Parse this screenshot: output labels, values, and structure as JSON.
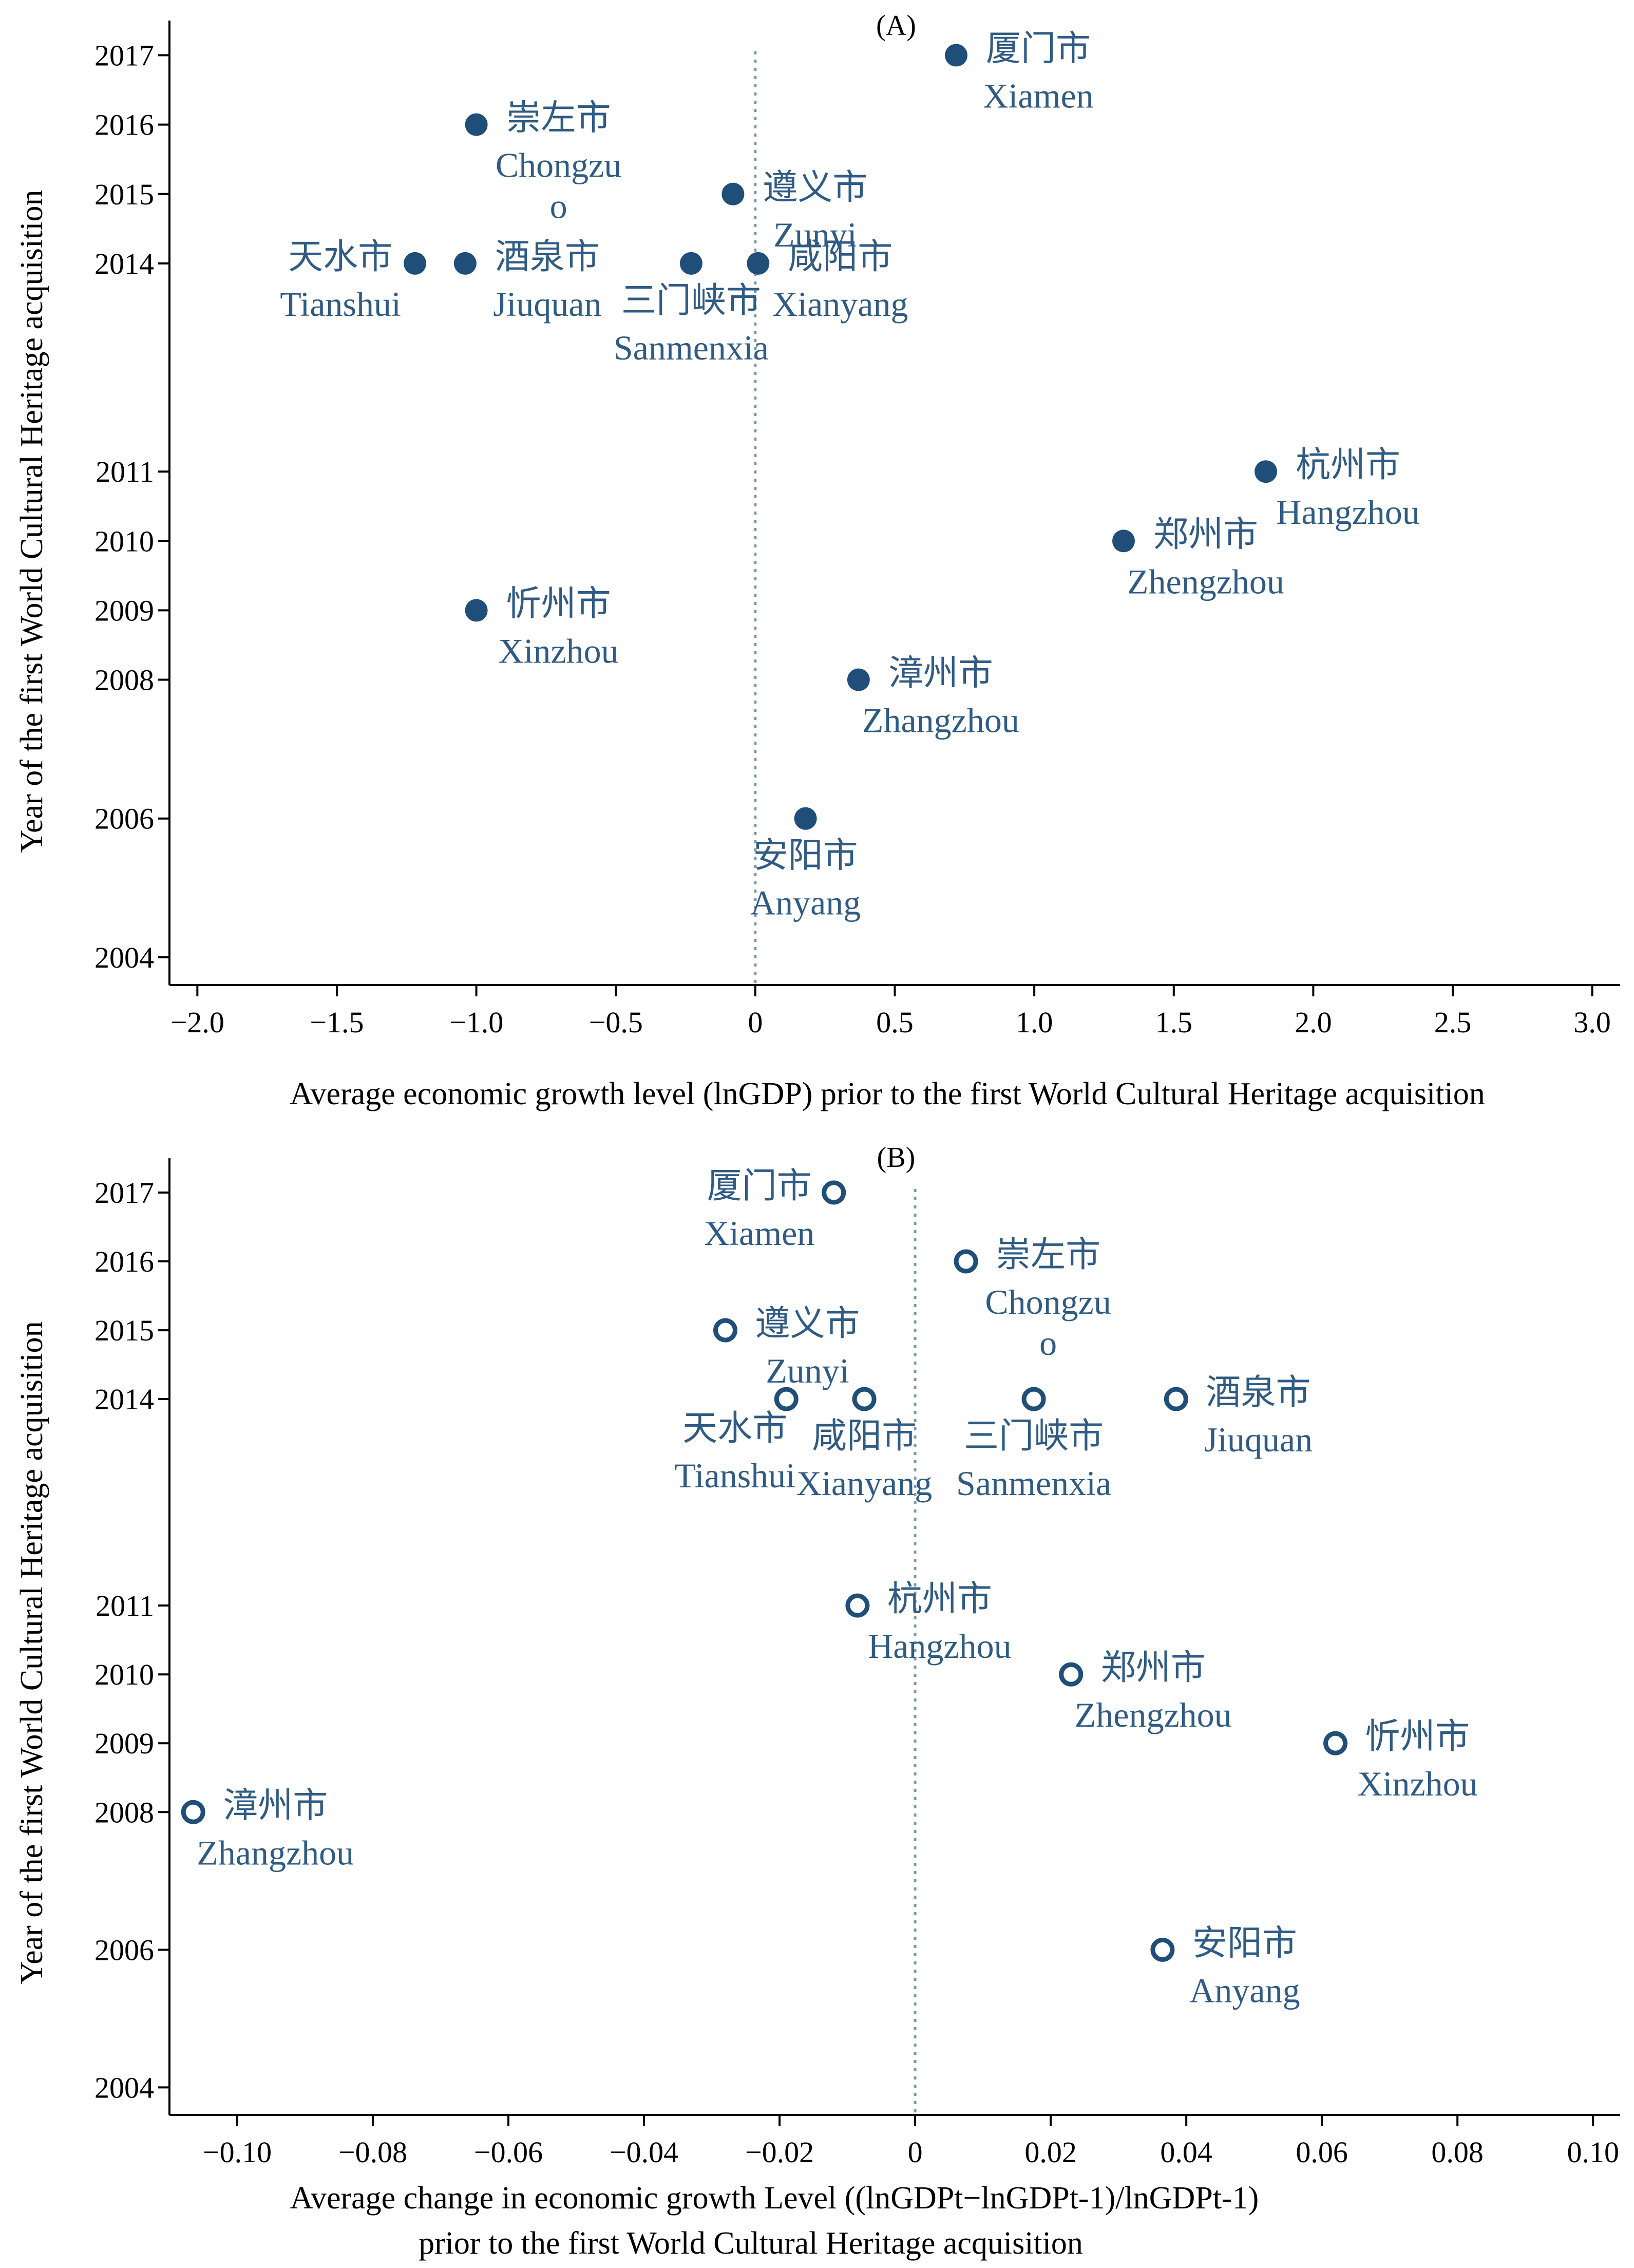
{
  "chart_data": [
    {
      "type": "scatter",
      "title": "(A)",
      "xlabel": "Average economic growth level (lnGDP) prior to  the first World Cultural Heritage acquisition",
      "ylabel": "Year of the first World Cultural Heritage acquisition",
      "xlim": [
        -2.1,
        3.1
      ],
      "ylim": [
        2003.6,
        2017.5
      ],
      "xticks": [
        -2.0,
        -1.5,
        -1.0,
        -0.5,
        0,
        0.5,
        1.0,
        1.5,
        2.0,
        2.5,
        3.0
      ],
      "xtick_labels": [
        "−2.0",
        "−1.5",
        "−1.0",
        "−0.5",
        "0",
        "0.5",
        "1.0",
        "1.5",
        "2.0",
        "2.5",
        "3.0"
      ],
      "yticks": [
        2004,
        2006,
        2008,
        2009,
        2010,
        2011,
        2014,
        2015,
        2016,
        2017
      ],
      "ytick_labels": [
        "2004",
        "2006",
        "2008",
        "2009",
        "2010",
        "2011",
        "2014",
        "2015",
        "2016",
        "2017"
      ],
      "reference_line_x": 0,
      "marker": "filled-circle",
      "color": "#1f4e79",
      "label_color": "#2f5b84",
      "points": [
        {
          "cn": "厦门市",
          "en": "Xiamen",
          "x": 0.72,
          "y": 2017,
          "label_pos": "right"
        },
        {
          "cn": "崇左市",
          "en": "Chongzu",
          "en2": "o",
          "x": -1.0,
          "y": 2016,
          "label_pos": "right"
        },
        {
          "cn": "遵义市",
          "en": "Zunyi",
          "x": -0.08,
          "y": 2015,
          "label_pos": "right"
        },
        {
          "cn": "天水市",
          "en": "Tianshui",
          "x": -1.22,
          "y": 2014,
          "label_pos": "left"
        },
        {
          "cn": "酒泉市",
          "en": "Jiuquan",
          "x": -1.04,
          "y": 2014,
          "label_pos": "right"
        },
        {
          "cn": "三门峡市",
          "en": "Sanmenxia",
          "x": -0.23,
          "y": 2014,
          "label_pos": "below"
        },
        {
          "cn": "咸阳市",
          "en": "Xianyang",
          "x": 0.01,
          "y": 2014,
          "label_pos": "right"
        },
        {
          "cn": "杭州市",
          "en": "Hangzhou",
          "x": 1.83,
          "y": 2011,
          "label_pos": "right"
        },
        {
          "cn": "郑州市",
          "en": "Zhengzhou",
          "x": 1.32,
          "y": 2010,
          "label_pos": "right"
        },
        {
          "cn": "忻州市",
          "en": "Xinzhou",
          "x": -1.0,
          "y": 2009,
          "label_pos": "right"
        },
        {
          "cn": "漳州市",
          "en": "Zhangzhou",
          "x": 0.37,
          "y": 2008,
          "label_pos": "right"
        },
        {
          "cn": "安阳市",
          "en": "Anyang",
          "x": 0.18,
          "y": 2006,
          "label_pos": "below"
        }
      ]
    },
    {
      "type": "scatter",
      "title": "(B)",
      "xlabel": "Average change in economic growth Level ((lnGDPt−lnGDPt-1)/lnGDPt-1)",
      "xlabel_line2": "prior to  the first World Cultural Heritage acquisition",
      "ylabel": "Year of the first World Cultural Heritage acquisition",
      "xlim": [
        -0.11,
        0.104
      ],
      "ylim": [
        2003.6,
        2017.5
      ],
      "xticks": [
        -0.1,
        -0.08,
        -0.06,
        -0.04,
        -0.02,
        0,
        0.02,
        0.04,
        0.06,
        0.08,
        0.1
      ],
      "xtick_labels": [
        "−0.10",
        "−0.08",
        "−0.06",
        "−0.04",
        "−0.02",
        "0",
        "0.02",
        "0.04",
        "0.06",
        "0.08",
        "0.10"
      ],
      "yticks": [
        2004,
        2006,
        2008,
        2009,
        2010,
        2011,
        2014,
        2015,
        2016,
        2017
      ],
      "ytick_labels": [
        "2004",
        "2006",
        "2008",
        "2009",
        "2010",
        "2011",
        "2014",
        "2015",
        "2016",
        "2017"
      ],
      "reference_line_x": 0,
      "marker": "hollow-circle",
      "color": "#1f4e79",
      "label_color": "#2f5b84",
      "points": [
        {
          "cn": "厦门市",
          "en": "Xiamen",
          "x": -0.012,
          "y": 2017,
          "label_pos": "left"
        },
        {
          "cn": "崇左市",
          "en": "Chongzu",
          "en2": "o",
          "x": 0.0075,
          "y": 2016,
          "label_pos": "right"
        },
        {
          "cn": "遵义市",
          "en": "Zunyi",
          "x": -0.028,
          "y": 2015,
          "label_pos": "right"
        },
        {
          "cn": "天水市",
          "en": "Tianshui",
          "x": -0.019,
          "y": 2014,
          "label_pos": "below-left"
        },
        {
          "cn": "咸阳市",
          "en": "Xianyang",
          "x": -0.0075,
          "y": 2014,
          "label_pos": "below"
        },
        {
          "cn": "三门峡市",
          "en": "Sanmenxia",
          "x": 0.0175,
          "y": 2014,
          "label_pos": "below"
        },
        {
          "cn": "酒泉市",
          "en": "Jiuquan",
          "x": 0.0385,
          "y": 2014,
          "label_pos": "right"
        },
        {
          "cn": "杭州市",
          "en": "Hangzhou",
          "x": -0.0085,
          "y": 2011,
          "label_pos": "right"
        },
        {
          "cn": "郑州市",
          "en": "Zhengzhou",
          "x": 0.023,
          "y": 2010,
          "label_pos": "right"
        },
        {
          "cn": "忻州市",
          "en": "Xinzhou",
          "x": 0.062,
          "y": 2009,
          "label_pos": "right"
        },
        {
          "cn": "漳州市",
          "en": "Zhangzhou",
          "x": -0.1065,
          "y": 2008,
          "label_pos": "right"
        },
        {
          "cn": "安阳市",
          "en": "Anyang",
          "x": 0.0365,
          "y": 2006,
          "label_pos": "right"
        }
      ]
    }
  ]
}
